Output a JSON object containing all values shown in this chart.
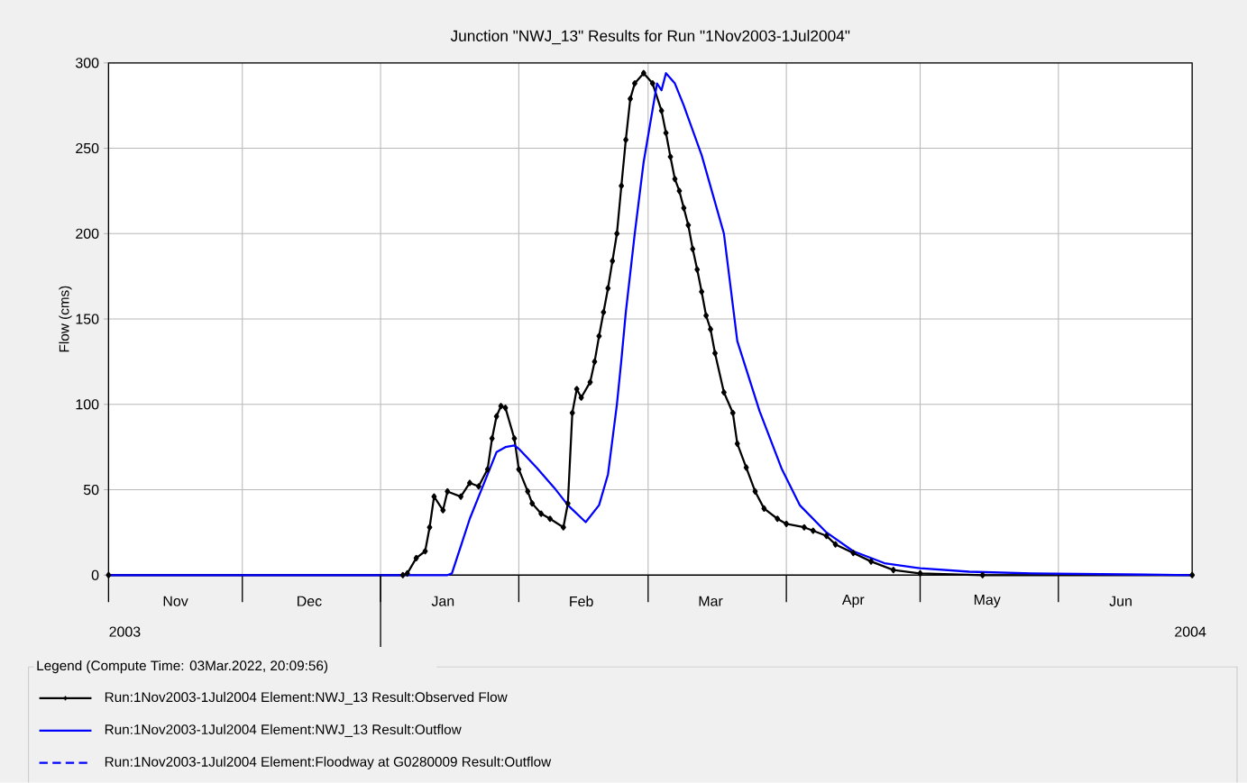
{
  "chart_data": {
    "type": "line",
    "title": "Junction \"NWJ_13\" Results for Run \"1Nov2003-1Jul2004\"",
    "ylabel": "Flow (cms)",
    "legend_title": "Legend (Compute Time: 03Mar.2022, 20:09:56)",
    "legend": "bottom",
    "grid": true,
    "xlim": [
      "2003-11-01",
      "2004-07-01"
    ],
    "ylim": [
      0,
      300
    ],
    "yticks": [
      0,
      50,
      100,
      150,
      200,
      250,
      300
    ],
    "xticks": [
      {
        "value": "2003-11-01",
        "label": null
      },
      {
        "value": "2003-12-01",
        "label": null
      },
      {
        "value": "2004-01-01",
        "label": null
      },
      {
        "value": "2004-02-01",
        "label": null
      },
      {
        "value": "2004-03-01",
        "label": null
      },
      {
        "value": "2004-04-01",
        "label": null
      },
      {
        "value": "2004-05-01",
        "label": null
      },
      {
        "value": "2004-06-01",
        "label": null
      },
      {
        "value": "2003-11-16",
        "label": "Nov"
      },
      {
        "value": "2003-12-16",
        "label": "Dec"
      },
      {
        "value": "2004-01-15",
        "label": "Jan"
      },
      {
        "value": "2004-02-15",
        "label": "Feb"
      },
      {
        "value": "2004-03-15",
        "label": "Mar"
      },
      {
        "value": "2004-04-16",
        "label": "Apr"
      },
      {
        "value": "2004-05-16",
        "label": "May"
      },
      {
        "value": "2004-06-15",
        "label": "Jun"
      }
    ],
    "annotations": [
      "2003",
      "2004"
    ],
    "series": [
      {
        "name": "Run:1Nov2003-1Jul2004 Element:NWJ_13 Result:Observed Flow",
        "color": "#000000",
        "marker": "diamond",
        "line_style": "solid",
        "x": [
          "2003-11-01",
          "2004-01-06",
          "2004-01-07",
          "2004-01-09",
          "2004-01-11",
          "2004-01-12",
          "2004-01-13",
          "2004-01-15",
          "2004-01-16",
          "2004-01-19",
          "2004-01-21",
          "2004-01-23",
          "2004-01-25",
          "2004-01-26",
          "2004-01-27",
          "2004-01-28",
          "2004-01-29",
          "2004-01-31",
          "2004-02-01",
          "2004-02-03",
          "2004-02-04",
          "2004-02-06",
          "2004-02-08",
          "2004-02-11",
          "2004-02-12",
          "2004-02-13",
          "2004-02-14",
          "2004-02-15",
          "2004-02-17",
          "2004-02-18",
          "2004-02-19",
          "2004-02-20",
          "2004-02-21",
          "2004-02-22",
          "2004-02-23",
          "2004-02-24",
          "2004-02-25",
          "2004-02-26",
          "2004-02-27",
          "2004-02-29",
          "2004-03-02",
          "2004-03-04",
          "2004-03-05",
          "2004-03-06",
          "2004-03-07",
          "2004-03-08",
          "2004-03-09",
          "2004-03-10",
          "2004-03-11",
          "2004-03-12",
          "2004-03-13",
          "2004-03-14",
          "2004-03-15",
          "2004-03-16",
          "2004-03-18",
          "2004-03-20",
          "2004-03-21",
          "2004-03-23",
          "2004-03-25",
          "2004-03-27",
          "2004-03-30",
          "2004-04-01",
          "2004-04-05",
          "2004-04-07",
          "2004-04-10",
          "2004-04-12",
          "2004-04-16",
          "2004-04-20",
          "2004-04-25",
          "2004-05-01",
          "2004-05-15",
          "2004-07-01"
        ],
        "values": [
          0,
          0,
          1,
          10,
          14,
          28,
          46,
          38,
          49,
          46,
          54,
          52,
          62,
          80,
          93,
          99,
          98,
          80,
          62,
          49,
          42,
          36,
          33,
          28,
          42,
          95,
          109,
          104,
          113,
          125,
          140,
          154,
          168,
          184,
          200,
          228,
          255,
          279,
          288,
          294,
          288,
          272,
          259,
          245,
          232,
          225,
          215,
          205,
          191,
          179,
          166,
          152,
          144,
          130,
          107,
          95,
          77,
          63,
          49,
          39,
          33,
          30,
          28,
          26,
          23,
          18,
          13,
          8,
          3,
          1,
          0,
          0
        ]
      },
      {
        "name": "Run:1Nov2003-1Jul2004 Element:NWJ_13 Result:Outflow",
        "color": "#0000ff",
        "line_style": "solid",
        "x": [
          "2003-11-01",
          "2004-01-16",
          "2004-01-17",
          "2004-01-19",
          "2004-01-21",
          "2004-01-23",
          "2004-01-25",
          "2004-01-27",
          "2004-01-29",
          "2004-01-31",
          "2004-02-01",
          "2004-02-05",
          "2004-02-09",
          "2004-02-12",
          "2004-02-16",
          "2004-02-19",
          "2004-02-21",
          "2004-02-23",
          "2004-02-24",
          "2004-02-25",
          "2004-02-27",
          "2004-02-29",
          "2004-03-03",
          "2004-03-04",
          "2004-03-05",
          "2004-03-07",
          "2004-03-09",
          "2004-03-13",
          "2004-03-18",
          "2004-03-21",
          "2004-03-26",
          "2004-03-31",
          "2004-04-04",
          "2004-04-10",
          "2004-04-16",
          "2004-04-23",
          "2004-05-01",
          "2004-05-12",
          "2004-05-26",
          "2004-07-01"
        ],
        "values": [
          0,
          0,
          1,
          17,
          33,
          46,
          59,
          72,
          75,
          76,
          74,
          63,
          51,
          41,
          31,
          41,
          59,
          100,
          126,
          154,
          200,
          242,
          288,
          284,
          294,
          288,
          275,
          246,
          200,
          137,
          96,
          62,
          41,
          25,
          14,
          7,
          4,
          2,
          1,
          0
        ]
      },
      {
        "name": "Run:1Nov2003-1Jul2004 Element:Floodway at G0280009 Result:Outflow",
        "color": "#0000ff",
        "line_style": "dashed"
      }
    ]
  }
}
